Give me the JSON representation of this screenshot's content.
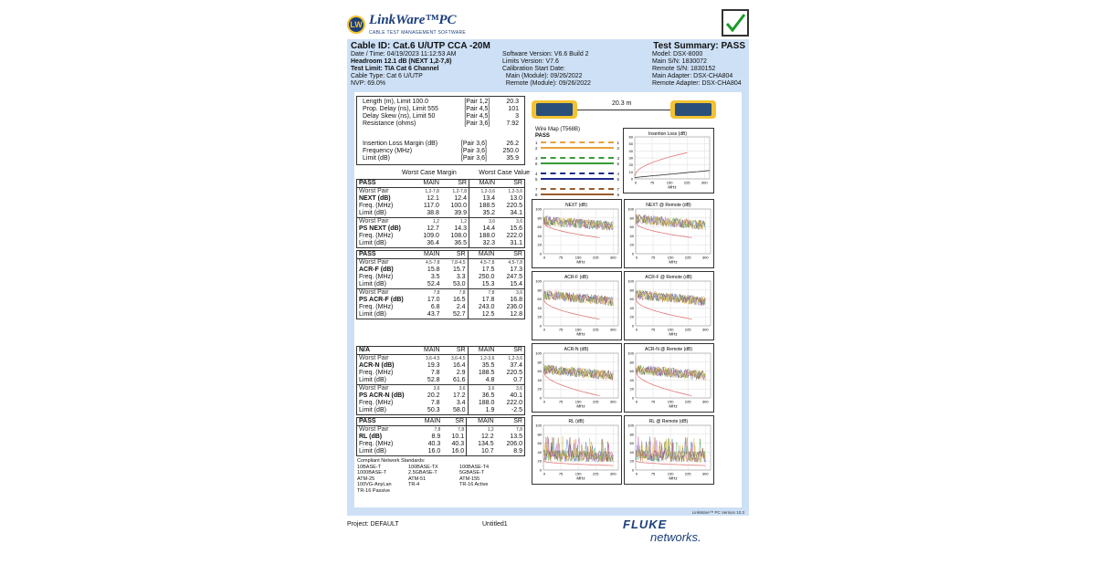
{
  "logo": {
    "name": "LinkWare™PC",
    "tagline": "CABLE TEST MANAGEMENT SOFTWARE",
    "mark": "LW"
  },
  "status_icon": "green-checkmark-icon",
  "header": {
    "cable_id": "Cable ID: Cat.6 U/UTP CCA -20M",
    "summary": "Test Summary: PASS",
    "col1": [
      "Date / Time: 04/19/2023  11:12:53 AM",
      "Headroom 12.1 dB (NEXT 1,2-7,8)",
      "Test Limit: TIA Cat 6 Channel",
      "Cable Type: Cat 6 U/UTP",
      "NVP: 69.0%"
    ],
    "col2": [
      "Software Version: V6.6 Build 2",
      "Limits Version: V7.6",
      "Calibration Start Date:",
      "  Main (Module): 09/26/2022",
      "  Remote (Module): 09/26/2022"
    ],
    "col3": [
      "Model: DSX-8000",
      "Main S/N: 1830072",
      "Remote S/N: 1830152",
      "Main Adapter: DSX-CHA804",
      "Remote Adapter: DSX-CHA804"
    ]
  },
  "summary_rows": [
    [
      "Length (m), Limit 100.0",
      "[Pair 1,2]",
      "20.3"
    ],
    [
      "Prop. Delay (ns), Limit 555",
      "[Pair 4,5]",
      "101"
    ],
    [
      "Delay Skew (ns), Limit 50",
      "[Pair 4,5]",
      "3"
    ],
    [
      "Resistance (ohms)",
      "[Pair 3,6]",
      "7.92"
    ]
  ],
  "il_rows": [
    [
      "Insertion Loss Margin (dB)",
      "[Pair 3,6]",
      "26.2"
    ],
    [
      "Frequency (MHz)",
      "[Pair 3,6]",
      "250.0"
    ],
    [
      "Limit (dB)",
      "[Pair 3,6]",
      "35.9"
    ]
  ],
  "worst_case_margin": "Worst Case Margin",
  "worst_case_value": "Worst Case Value",
  "sections": [
    {
      "status": "PASS",
      "cols": [
        "MAIN",
        "SR",
        "MAIN",
        "SR"
      ],
      "groups": [
        [
          [
            "Worst Pair",
            "1,2-7,8",
            "1,2-7,8",
            "1,2-3,6",
            "1,2-3,6"
          ],
          [
            "NEXT (dB)",
            "12.1",
            "12.4",
            "13.4",
            "13.0"
          ],
          [
            "Freq. (MHz)",
            "117.0",
            "100.0",
            "188.5",
            "220.5"
          ],
          [
            "Limit (dB)",
            "38.8",
            "39.9",
            "35.2",
            "34.1"
          ]
        ],
        [
          [
            "Worst Pair",
            "1,2",
            "1,2",
            "3,6",
            "3,6"
          ],
          [
            "PS NEXT (dB)",
            "12.7",
            "14.3",
            "14.4",
            "15.6"
          ],
          [
            "Freq. (MHz)",
            "109.0",
            "108.0",
            "188.0",
            "222.0"
          ],
          [
            "Limit (dB)",
            "36.4",
            "36.5",
            "32.3",
            "31.1"
          ]
        ]
      ]
    },
    {
      "status": "PASS",
      "cols": [
        "MAIN",
        "SR",
        "MAIN",
        "SR"
      ],
      "groups": [
        [
          [
            "Worst Pair",
            "4,5-7,8",
            "7,8-4,5",
            "4,5-7,8",
            "4,5-7,8"
          ],
          [
            "ACR-F (dB)",
            "15.8",
            "15.7",
            "17.5",
            "17.3"
          ],
          [
            "Freq. (MHz)",
            "3.5",
            "3.3",
            "250.0",
            "247.5"
          ],
          [
            "Limit (dB)",
            "52.4",
            "53.0",
            "15.3",
            "15.4"
          ]
        ],
        [
          [
            "Worst Pair",
            "7,8",
            "7,8",
            "7,8",
            "3,6"
          ],
          [
            "PS ACR-F (dB)",
            "17.0",
            "16.5",
            "17.8",
            "16.8"
          ],
          [
            "Freq. (MHz)",
            "6.8",
            "2.4",
            "243.0",
            "236.0"
          ],
          [
            "Limit (dB)",
            "43.7",
            "52.7",
            "12.5",
            "12.8"
          ]
        ]
      ]
    },
    {
      "status": "N/A",
      "cols": [
        "MAIN",
        "SR",
        "MAIN",
        "SR"
      ],
      "groups": [
        [
          [
            "Worst Pair",
            "3,6-4,5",
            "3,6-4,5",
            "1,2-3,6",
            "1,2-3,6"
          ],
          [
            "ACR-N (dB)",
            "19.3",
            "16.4",
            "35.5",
            "37.4"
          ],
          [
            "Freq. (MHz)",
            "7.8",
            "2.9",
            "188.5",
            "220.5"
          ],
          [
            "Limit (dB)",
            "52.8",
            "61.6",
            "4.8",
            "0.7"
          ]
        ],
        [
          [
            "Worst Pair",
            "3,6",
            "3,6",
            "3,6",
            "3,6"
          ],
          [
            "PS ACR-N (dB)",
            "20.2",
            "17.2",
            "36.5",
            "40.1"
          ],
          [
            "Freq. (MHz)",
            "7.8",
            "3.4",
            "188.0",
            "222.0"
          ],
          [
            "Limit (dB)",
            "50.3",
            "58.0",
            "1.9",
            "-2.5"
          ]
        ]
      ]
    },
    {
      "status": "PASS",
      "cols": [
        "MAIN",
        "SR",
        "MAIN",
        "SR"
      ],
      "groups": [
        [
          [
            "Worst Pair",
            "7,8",
            "7,8",
            "1,2",
            "7,8"
          ],
          [
            "RL (dB)",
            "8.9",
            "10.1",
            "12.2",
            "13.5"
          ],
          [
            "Freq. (MHz)",
            "40.3",
            "40.3",
            "134.5",
            "206.0"
          ],
          [
            "Limit (dB)",
            "16.0",
            "16.0",
            "10.7",
            "8.9"
          ]
        ]
      ]
    }
  ],
  "standards": {
    "title": "Compliant Network Standards:",
    "items": [
      "10BASE-T",
      "100BASE-TX",
      "100BASE-T4",
      "1000BASE-T",
      "2.5GBASE-T",
      "5GBASE-T",
      "ATM-25",
      "ATM-51",
      "ATM-155",
      "100VG-AnyLan",
      "TR-4",
      "TR-16 Active",
      "TR-16 Passive"
    ]
  },
  "link_length": "20.3 m",
  "wire_map": {
    "title": "Wire Map (T568B)",
    "result": "PASS",
    "pairs": [
      [
        "1",
        "2",
        "#e8a23a"
      ],
      [
        "3",
        "6",
        "#3a9a3a"
      ],
      [
        "4",
        "5",
        "#1d2a8a"
      ],
      [
        "7",
        "8",
        "#9a5a2a"
      ]
    ]
  },
  "insertion_loss": {
    "title": "Insertion Loss (dB)",
    "yticks": [
      "60",
      "50",
      "40",
      "30",
      "20",
      "10",
      "0"
    ],
    "xticks": [
      "0",
      "75",
      "150",
      "225",
      "300"
    ],
    "xlabel": "MHz"
  },
  "charts": [
    {
      "title": "NEXT (dB)"
    },
    {
      "title": "NEXT @ Remote (dB)"
    },
    {
      "title": "ACR-F (dB)"
    },
    {
      "title": "ACR-F @ Remote (dB)"
    },
    {
      "title": "ACR-N (dB)"
    },
    {
      "title": "ACR-N @ Remote (dB)"
    },
    {
      "title": "RL (dB)"
    },
    {
      "title": "RL @ Remote (dB)"
    }
  ],
  "chart_axes": {
    "yticks": [
      "100",
      "80",
      "60",
      "40",
      "20",
      "0"
    ],
    "xticks": [
      "0",
      "75",
      "150",
      "225",
      "300"
    ],
    "xlabel": "MHz"
  },
  "version": "LinkWare™ PC Version 10.3",
  "footer": {
    "project": "Project: DEFAULT",
    "file": "Untitled1",
    "brand_top": "FLUKE",
    "brand_bottom": "networks."
  },
  "colors": {
    "pass": "#1a9a2a",
    "header_bg": "#cde0f5",
    "limit": "#e07a7a"
  }
}
